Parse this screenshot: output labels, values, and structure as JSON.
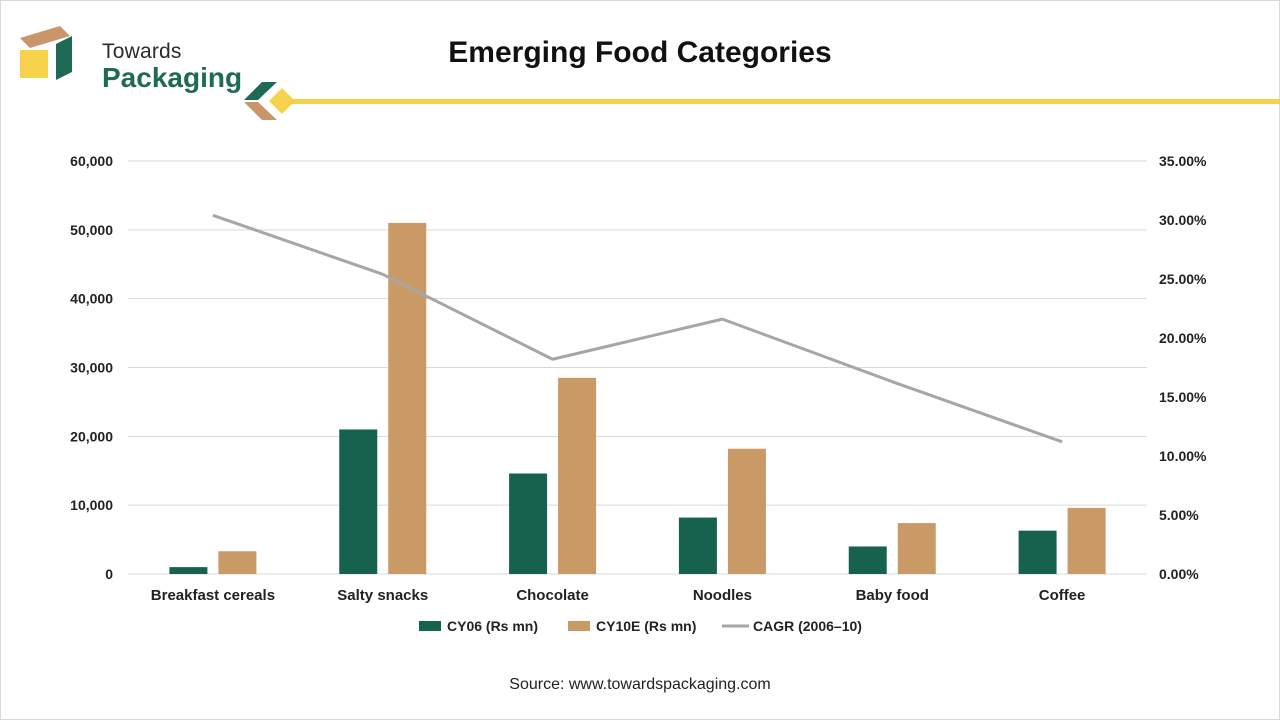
{
  "brand": {
    "line1": "Towards",
    "line2": "Packaging"
  },
  "colors": {
    "series1": "#17614f",
    "series2": "#c99a66",
    "line": "#a6a6a6",
    "accent_bar": "#f3d14a",
    "brand_green": "#1e6b55",
    "brand_tan": "#c9966a",
    "brand_yellow": "#f6d24d"
  },
  "source": "Source: www.towardspackaging.com",
  "chart_data": {
    "type": "bar",
    "title": "Emerging Food Categories",
    "categories": [
      "Breakfast cereals",
      "Salty snacks",
      "Chocolate",
      "Noodles",
      "Baby food",
      "Coffee"
    ],
    "series": [
      {
        "name": "CY06 (Rs mn)",
        "type": "bar",
        "axis": "left",
        "values": [
          1000,
          21000,
          14600,
          8200,
          4000,
          6300
        ]
      },
      {
        "name": "CY10E (Rs mn)",
        "type": "bar",
        "axis": "left",
        "values": [
          3300,
          51000,
          28500,
          18200,
          7400,
          9600
        ]
      },
      {
        "name": "CAGR (2006–10)",
        "type": "line",
        "axis": "right",
        "values": [
          0.304,
          0.254,
          0.182,
          0.216,
          0.163,
          0.112
        ]
      }
    ],
    "y_left": {
      "min": 0,
      "max": 60000,
      "ticks": [
        "0",
        "10,000",
        "20,000",
        "30,000",
        "40,000",
        "50,000",
        "60,000"
      ]
    },
    "y_right": {
      "min": 0,
      "max": 0.35,
      "ticks": [
        "0.00%",
        "5.00%",
        "10.00%",
        "15.00%",
        "20.00%",
        "25.00%",
        "30.00%",
        "35.00%"
      ]
    },
    "grid": true,
    "legend": "bottom"
  }
}
